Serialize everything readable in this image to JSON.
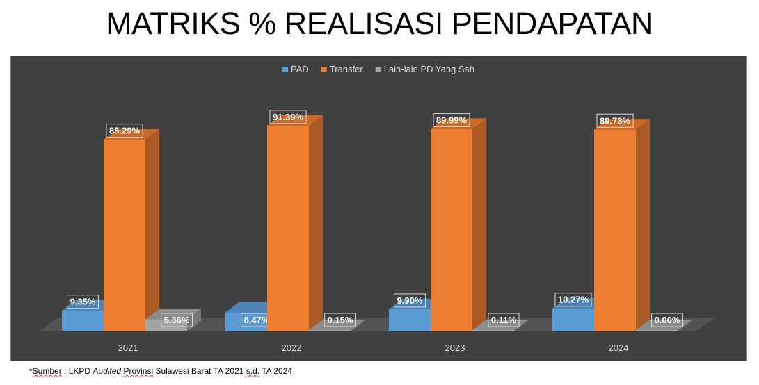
{
  "page": {
    "title": "MATRIKS % REALISASI PENDAPATAN",
    "footnote": {
      "star": "*",
      "w1": "Sumber",
      "t1": " : LKPD ",
      "italic": "Audited",
      "t2": " ",
      "w2": "Provinsi",
      "t3": " Sulawesi Barat TA 2021 ",
      "w3": "s.d.",
      "t4": " TA 2024"
    }
  },
  "chart_data": {
    "type": "bar",
    "title": "",
    "xlabel": "",
    "ylabel": "",
    "categories": [
      "2021",
      "2022",
      "2023",
      "2024"
    ],
    "series": [
      {
        "name": "PAD",
        "color": "#5b9bd5",
        "values": [
          9.35,
          8.47,
          9.9,
          10.27
        ],
        "labels": [
          "9.35%",
          "8.47%",
          "9.90%",
          "10.27%"
        ]
      },
      {
        "name": "Transfer",
        "color": "#ed7d31",
        "values": [
          85.29,
          91.39,
          89.99,
          89.73
        ],
        "labels": [
          "85.29%",
          "91.39%",
          "89.99%",
          "89.73%"
        ]
      },
      {
        "name": "Lain-lain PD Yang Sah",
        "color": "#a5a5a5",
        "values": [
          5.36,
          0.15,
          0.11,
          0.0
        ],
        "labels": [
          "5.36%",
          "0.15%",
          "0.11%",
          "0.00%"
        ]
      }
    ],
    "ylim": [
      0,
      100
    ],
    "legend_position": "top",
    "grid": false,
    "style": "3d-column",
    "background_color": "#404040"
  }
}
